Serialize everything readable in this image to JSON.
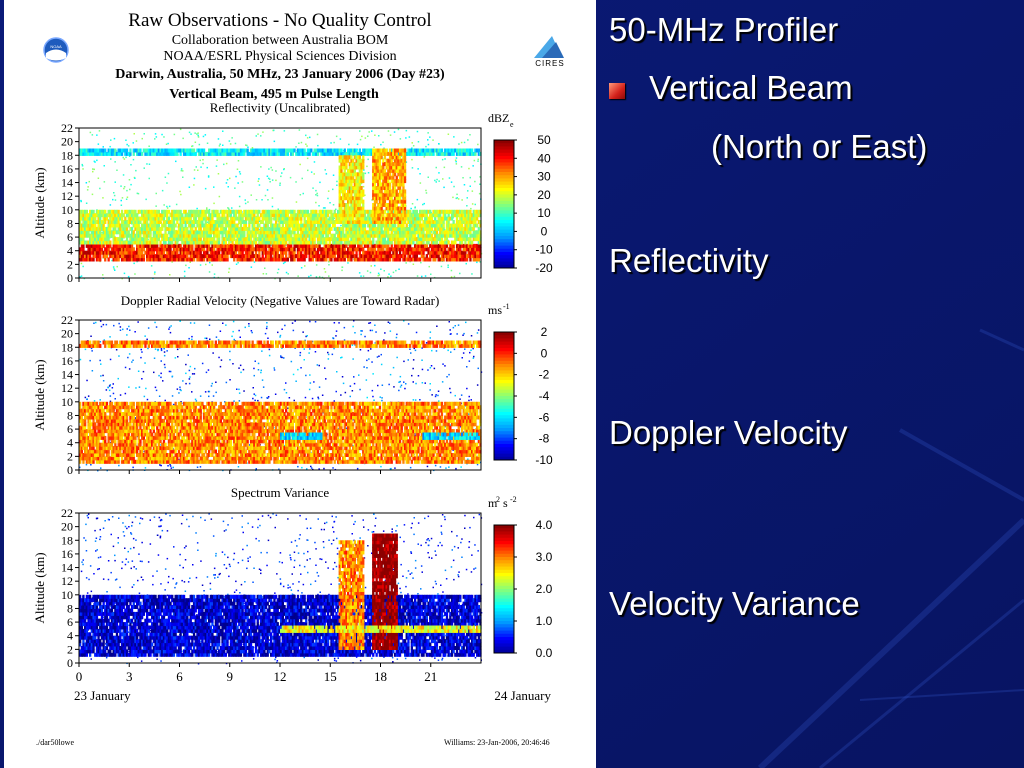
{
  "figure": {
    "title": "Raw Observations - No Quality Control",
    "collab_line": "Collaboration between Australia BOM",
    "division_line": "NOAA/ESRL Physical Sciences Division",
    "site_line": "Darwin, Australia, 50 MHz, 23 January 2006 (Day #23)",
    "beam_line": "Vertical Beam, 495 m Pulse Length",
    "logo_left": "NOAA",
    "logo_right": "CIRES",
    "footer_left": "./dar50lowe",
    "footer_right": "Williams: 23-Jan-2006, 20:46:46"
  },
  "slide": {
    "heading": "50-MHz Profiler",
    "bullet": "Vertical Beam",
    "bullet_sub": "(North or East)",
    "label_reflectivity": "Reflectivity",
    "label_doppler": "Doppler Velocity",
    "label_variance": "Velocity Variance"
  },
  "colors": {
    "slide_background": "#0a1a6e",
    "text": "#ffffff",
    "bullet": "#d2201a"
  },
  "chart_data": [
    {
      "type": "heatmap",
      "title": "Reflectivity (Uncalibrated)",
      "ylabel": "Altitude (km)",
      "ylim": [
        0,
        22
      ],
      "yticks": [
        0,
        2,
        4,
        6,
        8,
        10,
        12,
        14,
        16,
        18,
        20,
        22
      ],
      "xlim": [
        0,
        24
      ],
      "xticks": [
        0,
        3,
        6,
        9,
        12,
        15,
        18,
        21
      ],
      "colorbar": {
        "unit": "dBZ",
        "unit_sub": "e",
        "range": [
          -20,
          50
        ],
        "ticks": [
          "50",
          "40",
          "30",
          "20",
          "10",
          "0",
          "-10",
          "-20"
        ]
      },
      "features": [
        {
          "hours": [
            0,
            24
          ],
          "alt_km": [
            2.5,
            5
          ],
          "value": 40
        },
        {
          "hours": [
            0,
            24
          ],
          "alt_km": [
            5,
            10
          ],
          "value": 20
        },
        {
          "hours": [
            0,
            24
          ],
          "alt_km": [
            18,
            19
          ],
          "value": 5
        },
        {
          "hours": [
            15.5,
            17
          ],
          "alt_km": [
            8,
            18
          ],
          "value": 25
        },
        {
          "hours": [
            17.5,
            19.5
          ],
          "alt_km": [
            8,
            19
          ],
          "value": 30
        }
      ]
    },
    {
      "type": "heatmap",
      "title": "Doppler Radial Velocity (Negative Values are Toward Radar)",
      "ylabel": "Altitude (km)",
      "ylim": [
        0,
        22
      ],
      "yticks": [
        0,
        2,
        4,
        6,
        8,
        10,
        12,
        14,
        16,
        18,
        20,
        22
      ],
      "xlim": [
        0,
        24
      ],
      "xticks": [
        0,
        3,
        6,
        9,
        12,
        15,
        18,
        21
      ],
      "colorbar": {
        "unit": "ms",
        "unit_sup": "-1",
        "range": [
          -10,
          2
        ],
        "ticks": [
          "2",
          "0",
          "-2",
          "-4",
          "-6",
          "-8",
          "-10"
        ]
      },
      "features": [
        {
          "hours": [
            0,
            24
          ],
          "alt_km": [
            1,
            10
          ],
          "value": -1
        },
        {
          "hours": [
            0,
            24
          ],
          "alt_km": [
            18,
            19
          ],
          "value": -1
        },
        {
          "hours": [
            12,
            14.5
          ],
          "alt_km": [
            4.5,
            5.5
          ],
          "value": -6
        },
        {
          "hours": [
            20.5,
            24
          ],
          "alt_km": [
            4.5,
            5.5
          ],
          "value": -6
        }
      ]
    },
    {
      "type": "heatmap",
      "title": "Spectrum Variance",
      "ylabel": "Altitude (km)",
      "xlabel": "",
      "ylim": [
        0,
        22
      ],
      "yticks": [
        0,
        2,
        4,
        6,
        8,
        10,
        12,
        14,
        16,
        18,
        20,
        22
      ],
      "xlim": [
        0,
        24
      ],
      "xticks": [
        0,
        3,
        6,
        9,
        12,
        15,
        18,
        21
      ],
      "x_date_labels": [
        "23 January",
        "24 January"
      ],
      "colorbar": {
        "unit": "m",
        "unit_sup": "2",
        "unit2": "s",
        "unit2_sup": "-2",
        "range": [
          0,
          4
        ],
        "ticks": [
          "4.0",
          "3.0",
          "2.0",
          "1.0",
          "0.0"
        ]
      },
      "features": [
        {
          "hours": [
            0,
            24
          ],
          "alt_km": [
            1,
            10
          ],
          "value": 0.3
        },
        {
          "hours": [
            15.5,
            17
          ],
          "alt_km": [
            2,
            18
          ],
          "value": 3
        },
        {
          "hours": [
            17.5,
            19
          ],
          "alt_km": [
            2,
            19
          ],
          "value": 4
        },
        {
          "hours": [
            12,
            24
          ],
          "alt_km": [
            4.5,
            5.5
          ],
          "value": 2.5
        }
      ]
    }
  ]
}
